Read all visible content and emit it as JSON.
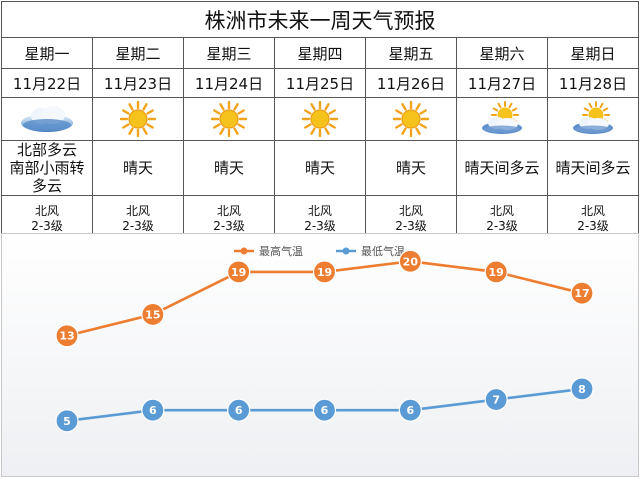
{
  "title": "株洲市未来一周天气预报",
  "days": [
    {
      "day": "星期一",
      "date": "11月22日",
      "icon": "sun-cloud-rain-icon",
      "condition": [
        "北部多云",
        "南部小雨转",
        "多云"
      ],
      "wind": [
        "北风",
        "2-3级"
      ]
    },
    {
      "day": "星期二",
      "date": "11月23日",
      "icon": "sun-icon",
      "condition": [
        "晴天"
      ],
      "wind": [
        "北风",
        "2-3级"
      ]
    },
    {
      "day": "星期三",
      "date": "11月24日",
      "icon": "sun-icon",
      "condition": [
        "晴天"
      ],
      "wind": [
        "北风",
        "2-3级"
      ]
    },
    {
      "day": "星期四",
      "date": "11月25日",
      "icon": "sun-icon",
      "condition": [
        "晴天"
      ],
      "wind": [
        "北风",
        "2-3级"
      ]
    },
    {
      "day": "星期五",
      "date": "11月26日",
      "icon": "sun-icon",
      "condition": [
        "晴天"
      ],
      "wind": [
        "北风",
        "2-3级"
      ]
    },
    {
      "day": "星期六",
      "date": "11月27日",
      "icon": "sun-cloud-icon",
      "condition": [
        "晴天间多云"
      ],
      "wind": [
        "北风",
        "2-3级"
      ]
    },
    {
      "day": "星期日",
      "date": "11月28日",
      "icon": "sun-cloud-icon",
      "condition": [
        "晴天间多云"
      ],
      "wind": [
        "北风",
        "2-3级"
      ]
    }
  ],
  "chart_data": {
    "type": "line",
    "categories": [
      "星期一",
      "星期二",
      "星期三",
      "星期四",
      "星期五",
      "星期六",
      "星期日"
    ],
    "series": [
      {
        "name": "最高气温",
        "color": "#ED7D31",
        "values": [
          13,
          15,
          19,
          19,
          20,
          19,
          17
        ]
      },
      {
        "name": "最低气温",
        "color": "#5B9BD5",
        "values": [
          5,
          6,
          6,
          6,
          6,
          7,
          8
        ]
      }
    ],
    "ylim": [
      0,
      22
    ],
    "legend": "top-center",
    "grid": false,
    "data_labels": true
  }
}
